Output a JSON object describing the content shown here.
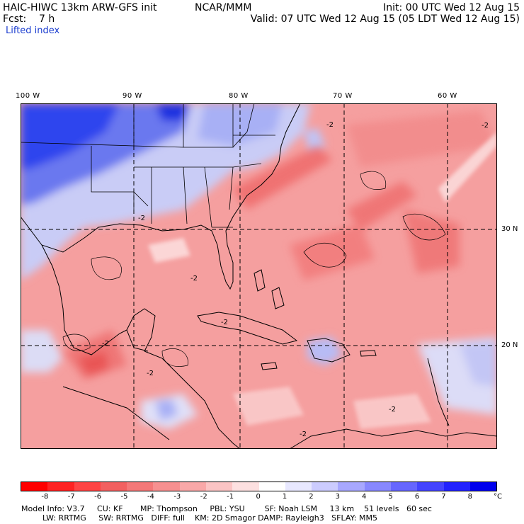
{
  "header": {
    "model": "HAIC-HIWC 13km ARW-GFS init",
    "org": "NCAR/MMM",
    "init": "Init: 00 UTC Wed 12 Aug 15",
    "fcst": "Fcst:    7 h",
    "valid": "Valid: 07 UTC Wed 12 Aug 15 (05 LDT Wed 12 Aug 15)",
    "field": "Lifted index"
  },
  "lon_labels": [
    "100 W",
    "90 W",
    "80 W",
    "70 W",
    "60 W"
  ],
  "lat_labels": [
    "30 N",
    "20 N"
  ],
  "legend": {
    "ticks": [
      "-8",
      "-7",
      "-6",
      "-5",
      "-4",
      "-3",
      "-2",
      "-1",
      "0",
      "1",
      "2",
      "3",
      "4",
      "5",
      "6",
      "7",
      "8"
    ],
    "unit": "°C",
    "colors": [
      "#ff0000",
      "#ff2222",
      "#ff4444",
      "#f26060",
      "#f47878",
      "#f79090",
      "#f9a8a8",
      "#fbc4c4",
      "#fde0e0",
      "#ffffff",
      "#e8e8ff",
      "#ccccff",
      "#a8a8ff",
      "#8888ff",
      "#6666ff",
      "#4444ff",
      "#2222ff",
      "#0000ee"
    ]
  },
  "model_info": {
    "line1": "Model Info: V3.7     CU: KF       MP: Thompson     PBL: YSU        SF: Noah LSM     13 km    51 levels   60 sec",
    "line2": "LW: RRTMG     SW: RRTMG   DIFF: full    KM: 2D Smagor DAMP: Rayleigh3   SFLAY: MM5"
  },
  "contour_labels": [
    "-2",
    "-2",
    "-2",
    "-2",
    "-2",
    "-2",
    "-2",
    "-2",
    "-2"
  ],
  "colors": {
    "land_outline": "#000000",
    "grid": "#000000",
    "field_text": "#1a3ccf"
  }
}
